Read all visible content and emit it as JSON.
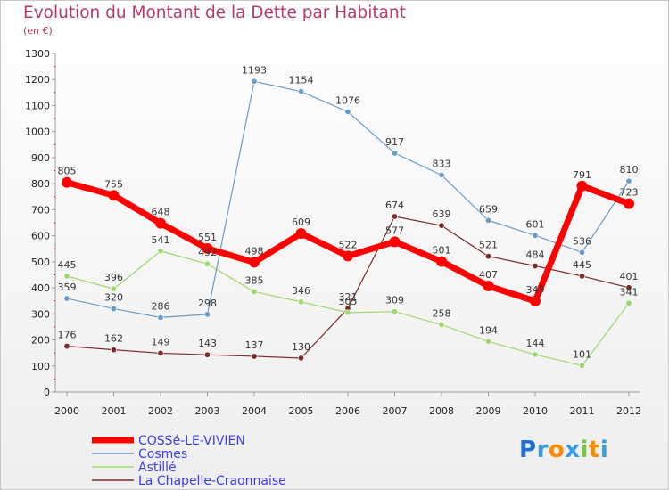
{
  "chart_data": {
    "type": "line",
    "title": "Evolution du Montant de la Dette par Habitant",
    "subtitle": "(en €)",
    "x": [
      "2000",
      "2001",
      "2002",
      "2003",
      "2004",
      "2005",
      "2006",
      "2007",
      "2008",
      "2009",
      "2010",
      "2011",
      "2012"
    ],
    "yticks": [
      "0",
      "100",
      "200",
      "300",
      "400",
      "500",
      "600",
      "700",
      "800",
      "900",
      "1000",
      "1100",
      "1200",
      "1300"
    ],
    "ylim": [
      0,
      1300
    ],
    "grid": false,
    "legend_position": "bottom-left",
    "series": [
      {
        "name": "COSSé-LE-VIVIEN",
        "color": "#ff0000",
        "width": 7,
        "values": [
          805,
          755,
          648,
          551,
          498,
          609,
          522,
          577,
          501,
          407,
          349,
          791,
          723
        ]
      },
      {
        "name": "Cosmes",
        "color": "#6b9bc7",
        "width": 1.2,
        "values": [
          359,
          320,
          286,
          298,
          1193,
          1154,
          1076,
          917,
          833,
          659,
          601,
          536,
          810
        ]
      },
      {
        "name": "Astillé",
        "color": "#9ed86d",
        "width": 1.2,
        "values": [
          445,
          396,
          541,
          492,
          385,
          346,
          305,
          309,
          258,
          194,
          144,
          101,
          341
        ]
      },
      {
        "name": "La Chapelle-Craonnaise",
        "color": "#7a2a2a",
        "width": 1.2,
        "values": [
          176,
          162,
          149,
          143,
          137,
          130,
          321,
          674,
          639,
          521,
          484,
          445,
          401
        ]
      }
    ]
  },
  "logo": {
    "text": "Proxiti",
    "colors": [
      "#1f6fd6",
      "#3a9be0",
      "#ff8c00",
      "#3a9be0",
      "#7cc243",
      "#ff8c00",
      "#3a9be0"
    ]
  }
}
